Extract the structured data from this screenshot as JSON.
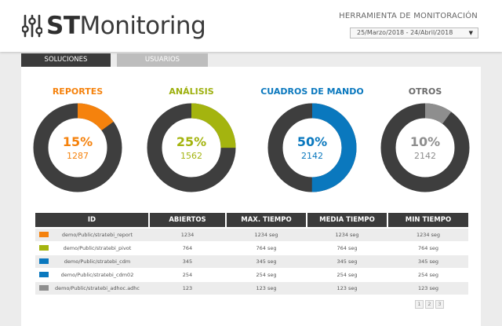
{
  "header": {
    "logo_bold": "ST",
    "logo_rest": "Monitoring",
    "tool_title": "HERRAMIENTA DE MONITORACIÓN",
    "date_range": "25/Marzo/2018  -  24/Abril/2018"
  },
  "tabs": [
    {
      "label": "SOLUCIONES",
      "active": true
    },
    {
      "label": "USUARIOS",
      "active": false
    }
  ],
  "donuts": [
    {
      "title": "REPORTES",
      "percent_label": "15%",
      "percent": 15,
      "count": "1287",
      "color": "#f5820d",
      "title_color": "#f5820d"
    },
    {
      "title": "ANÁLISIS",
      "percent_label": "25%",
      "percent": 25,
      "count": "1562",
      "color": "#a4b40f",
      "title_color": "#9db00e"
    },
    {
      "title": "CUADROS DE MANDO",
      "percent_label": "50%",
      "percent": 50,
      "count": "2142",
      "color": "#0a78be",
      "title_color": "#0a78be"
    },
    {
      "title": "OTROS",
      "percent_label": "10%",
      "percent": 10,
      "count": "2142",
      "color": "#8e8e8e",
      "title_color": "#6b6b6b"
    }
  ],
  "colors": {
    "ring_base": "#3e3e3e"
  },
  "table": {
    "headers": [
      "ID",
      "ABIERTOS",
      "MAX. TIEMPO",
      "MEDIA TIEMPO",
      "MIN TIEMPO"
    ],
    "rows": [
      {
        "color": "#f5820d",
        "id": "demo/Public/stratebi_report",
        "abiertos": "1234",
        "max": "1234 seg",
        "media": "1234 seg",
        "min": "1234 seg"
      },
      {
        "color": "#a4b40f",
        "id": "demo/Public/stratebi_pivot",
        "abiertos": "764",
        "max": "764 seg",
        "media": "764 seg",
        "min": "764 seg"
      },
      {
        "color": "#0a78be",
        "id": "demo/Public/stratebi_cdm",
        "abiertos": "345",
        "max": "345 seg",
        "media": "345 seg",
        "min": "345 seg"
      },
      {
        "color": "#0a78be",
        "id": "demo/Public/stratebi_cdm02",
        "abiertos": "254",
        "max": "254 seg",
        "media": "254 seg",
        "min": "254 seg"
      },
      {
        "color": "#8e8e8e",
        "id": "demo/Public/stratebi_adhoc.adhc",
        "abiertos": "123",
        "max": "123 seg",
        "media": "123 seg",
        "min": "123 seg"
      }
    ]
  },
  "pagination": [
    "1",
    "2",
    "3"
  ]
}
